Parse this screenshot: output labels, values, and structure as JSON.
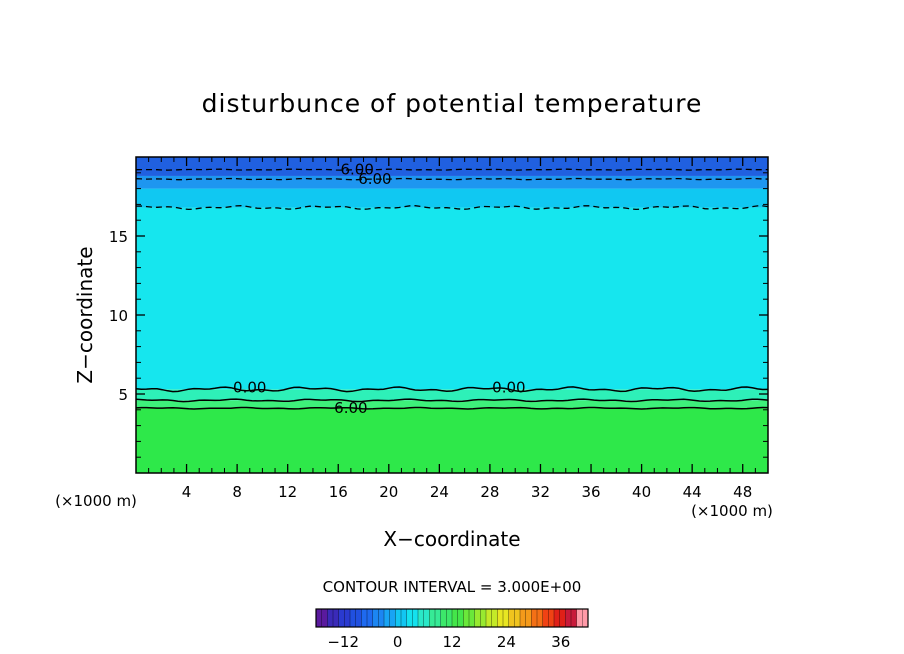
{
  "chart_data": {
    "type": "heatmap",
    "title": "disturbunce of potential temperature",
    "xlabel": "X−coordinate",
    "ylabel": "Z−coordinate",
    "x_unit": "(×1000 m)",
    "y_unit": "(×1000 m)",
    "xlim": [
      0,
      50
    ],
    "ylim": [
      0,
      20
    ],
    "x_ticks": [
      4,
      8,
      12,
      16,
      20,
      24,
      28,
      32,
      36,
      40,
      44,
      48
    ],
    "y_ticks": [
      5,
      10,
      15
    ],
    "contour_interval_text": "CONTOUR INTERVAL = 3.000E+00",
    "contour_interval": 3.0,
    "contour_labels": [
      {
        "text": "6.00",
        "x": 17.5,
        "z": 19.2
      },
      {
        "text": "6.00",
        "x": 18.9,
        "z": 18.6
      },
      {
        "text": "0.00",
        "x": 9.0,
        "z": 5.4
      },
      {
        "text": "0.00",
        "x": 29.5,
        "z": 5.4
      },
      {
        "text": "6.00",
        "x": 17.0,
        "z": 4.1
      }
    ],
    "layers": [
      {
        "z_bottom": 0,
        "z_top": 4.1,
        "value": 7.5,
        "color": "#2ee84a"
      },
      {
        "z_bottom": 4.1,
        "z_top": 4.6,
        "value": 4.5,
        "color": "#3ef07a"
      },
      {
        "z_bottom": 4.6,
        "z_top": 5.3,
        "value": 1.5,
        "color": "#2ef0b8"
      },
      {
        "z_bottom": 5.3,
        "z_top": 16.8,
        "value": -1.5,
        "color": "#16e6ee"
      },
      {
        "z_bottom": 16.8,
        "z_top": 18.0,
        "value": -4.5,
        "color": "#10c8f2"
      },
      {
        "z_bottom": 18.0,
        "z_top": 18.8,
        "value": -7.5,
        "color": "#1e96f0"
      },
      {
        "z_bottom": 18.8,
        "z_top": 20,
        "value": -10.5,
        "color": "#2060e0"
      }
    ],
    "colorbar": {
      "min": -18,
      "max": 42,
      "tick_labels": [
        "−12",
        "0",
        "12",
        "24",
        "36"
      ],
      "tick_values": [
        -12,
        0,
        12,
        24,
        36
      ],
      "colors": [
        "#5a1a9e",
        "#3a2ab8",
        "#2a3ad0",
        "#2050e0",
        "#1e6af0",
        "#1c86f2",
        "#18a4f4",
        "#12c6f2",
        "#14e2ee",
        "#2ae8c8",
        "#36ea96",
        "#3ce86a",
        "#44e64a",
        "#6ae83a",
        "#98ea30",
        "#c4ea28",
        "#e8e622",
        "#f0c41e",
        "#f49a1a",
        "#f47016",
        "#f04214",
        "#e02018",
        "#c81a3a",
        "#ff9aa8"
      ]
    }
  }
}
